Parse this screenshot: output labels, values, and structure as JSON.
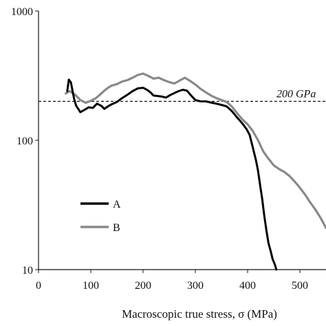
{
  "chart_data": {
    "type": "line",
    "xlabel": "Macroscopic true stress, σ (MPa)",
    "ylabel": "",
    "xlim": [
      0,
      550
    ],
    "ylim": [
      10,
      1000
    ],
    "y_scale": "log",
    "x_ticks": [
      0,
      100,
      200,
      300,
      400,
      500
    ],
    "y_ticks": [
      10,
      100,
      1000
    ],
    "y_tick_labels": [
      "10",
      "100",
      "1000"
    ],
    "grid": false,
    "legend_position": "lower-left",
    "reference_line": {
      "y": 200,
      "label": "200 GPa",
      "style": "dashed"
    },
    "series": [
      {
        "name": "A",
        "color": "#000000",
        "x": [
          55,
          58,
          62,
          68,
          72,
          76,
          80,
          88,
          96,
          104,
          112,
          120,
          126,
          132,
          140,
          150,
          160,
          170,
          180,
          190,
          200,
          208,
          214,
          220,
          228,
          236,
          244,
          252,
          260,
          268,
          276,
          284,
          292,
          300,
          310,
          320,
          330,
          340,
          350,
          360,
          370,
          380,
          390,
          398,
          404,
          410,
          416,
          420,
          424,
          428,
          432,
          436,
          440,
          444,
          448,
          452,
          455
        ],
        "y": [
          240,
          295,
          280,
          210,
          185,
          175,
          165,
          172,
          180,
          178,
          192,
          185,
          175,
          182,
          190,
          198,
          212,
          225,
          240,
          252,
          255,
          245,
          235,
          222,
          220,
          218,
          214,
          224,
          232,
          240,
          246,
          242,
          222,
          205,
          200,
          200,
          196,
          192,
          188,
          183,
          168,
          150,
          135,
          122,
          110,
          88,
          70,
          58,
          45,
          35,
          26,
          20,
          16,
          14,
          12,
          11,
          10
        ]
      },
      {
        "name": "B",
        "color": "#888888",
        "x": [
          52,
          60,
          70,
          80,
          90,
          100,
          110,
          120,
          130,
          140,
          150,
          160,
          170,
          180,
          190,
          200,
          210,
          220,
          230,
          240,
          250,
          260,
          270,
          280,
          290,
          300,
          310,
          320,
          330,
          340,
          350,
          360,
          370,
          380,
          390,
          400,
          410,
          420,
          430,
          440,
          450,
          460,
          470,
          480,
          490,
          500,
          510,
          520,
          530,
          540,
          550
        ],
        "y": [
          230,
          240,
          225,
          205,
          195,
          202,
          212,
          230,
          250,
          265,
          272,
          285,
          292,
          305,
          320,
          328,
          315,
          300,
          305,
          292,
          282,
          275,
          290,
          305,
          288,
          270,
          250,
          235,
          222,
          212,
          205,
          198,
          182,
          162,
          145,
          133,
          118,
          100,
          82,
          72,
          64,
          60,
          57,
          53,
          48,
          43,
          38,
          33,
          29,
          25,
          21
        ]
      }
    ]
  }
}
